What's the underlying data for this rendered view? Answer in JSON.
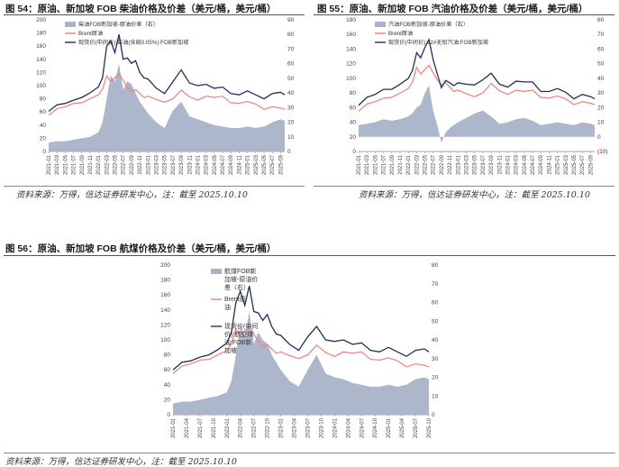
{
  "panels": [
    {
      "title": "图 54：原油、新加坡 FOB 柴油价格及价差（美元/桶，美元/桶）",
      "source": "资料来源：万得，信达证券研发中心，注：截至 2025.10.10"
    },
    {
      "title": "图 55：原油、新加坡 FOB 汽油价格及价差（美元/桶，美元/桶）",
      "source": "资料来源：万得，信达证券研发中心，注：截至 2025.10.10"
    },
    {
      "title": "图 56：原油、新加坡 FOB 航煤价格及价差（美元/桶，美元/桶）",
      "source": "资料来源：万得，信达证券研发中心，注：截至 2025.10.10"
    }
  ],
  "colors": {
    "spread_fill": "#a9b3c8",
    "brent": "#f08080",
    "product": "#1f2f5e",
    "grid": "#d9d9d9",
    "axis_text": "#444444",
    "negative_label": "#c00000"
  },
  "chart_data": [
    {
      "type": "area",
      "legend_position": "top-left",
      "left_axis": {
        "ylim": [
          0,
          200
        ],
        "ticks": [
          "0",
          "20",
          "40",
          "60",
          "80",
          "100",
          "120",
          "140",
          "160",
          "180",
          "200"
        ]
      },
      "right_axis": {
        "ylim": [
          0,
          90
        ],
        "ticks": [
          "0",
          "10",
          "20",
          "30",
          "40",
          "50",
          "60",
          "70",
          "80",
          "90"
        ]
      },
      "x_ticks": [
        "2021-01",
        "2021-03",
        "2021-05",
        "2021-07",
        "2021-09",
        "2021-11",
        "2022-01",
        "2022-03",
        "2022-05",
        "2022-07",
        "2022-09",
        "2022-11",
        "2023-01",
        "2023-03",
        "2023-05",
        "2023-07",
        "2023-09",
        "2023-11",
        "2024-01",
        "2024-03",
        "2024-05",
        "2024-07",
        "2024-09",
        "2024-11",
        "2025-01",
        "2025-03",
        "2025-05",
        "2025-07",
        "2025-09"
      ],
      "x": [
        "2021-01",
        "2021-03",
        "2021-05",
        "2021-07",
        "2021-09",
        "2021-11",
        "2022-01",
        "2022-02",
        "2022-03",
        "2022-04",
        "2022-05",
        "2022-06",
        "2022-07",
        "2022-08",
        "2022-09",
        "2022-10",
        "2022-11",
        "2022-12",
        "2023-01",
        "2023-03",
        "2023-05",
        "2023-07",
        "2023-09",
        "2023-11",
        "2024-01",
        "2024-03",
        "2024-05",
        "2024-07",
        "2024-09",
        "2024-11",
        "2025-01",
        "2025-03",
        "2025-05",
        "2025-07",
        "2025-09",
        "2025-10"
      ],
      "series": [
        {
          "name": "柴油FOB新加坡-原油价差（右）",
          "axis": "right",
          "kind": "area",
          "values": [
            6,
            7,
            7,
            8,
            9,
            10,
            13,
            20,
            36,
            52,
            48,
            60,
            42,
            48,
            46,
            40,
            34,
            30,
            26,
            20,
            16,
            28,
            34,
            24,
            22,
            20,
            18,
            17,
            16,
            16,
            17,
            16,
            17,
            20,
            22,
            21
          ]
        },
        {
          "name": "Brent原油",
          "axis": "left",
          "kind": "line",
          "values": [
            55,
            65,
            68,
            73,
            74,
            80,
            86,
            95,
            115,
            106,
            112,
            118,
            108,
            98,
            91,
            94,
            88,
            82,
            84,
            79,
            75,
            80,
            93,
            83,
            78,
            84,
            82,
            84,
            74,
            73,
            76,
            72,
            64,
            68,
            66,
            64
          ]
        },
        {
          "name": "现货价(中间价):柴油(含硫0.05%):FOB新加坡",
          "axis": "left",
          "kind": "line",
          "values": [
            61,
            71,
            73,
            78,
            82,
            89,
            98,
            112,
            160,
            168,
            150,
            178,
            140,
            142,
            134,
            138,
            120,
            112,
            110,
            96,
            88,
            106,
            124,
            104,
            100,
            102,
            96,
            98,
            88,
            86,
            92,
            86,
            80,
            88,
            90,
            86
          ]
        }
      ]
    },
    {
      "type": "area",
      "legend_position": "top-left",
      "left_axis": {
        "ylim": [
          0,
          180
        ],
        "ticks": [
          "0",
          "20",
          "40",
          "60",
          "80",
          "100",
          "120",
          "140",
          "160",
          "180"
        ]
      },
      "right_axis": {
        "ylim": [
          -10,
          80
        ],
        "ticks": [
          "(10)",
          "0",
          "10",
          "20",
          "30",
          "40",
          "50",
          "60",
          "70",
          "80"
        ]
      },
      "x_ticks": [
        "2021-01",
        "2021-03",
        "2021-05",
        "2021-07",
        "2021-09",
        "2021-11",
        "2022-01",
        "2022-03",
        "2022-05",
        "2022-07",
        "2022-09",
        "2022-11",
        "2023-01",
        "2023-03",
        "2023-05",
        "2023-07",
        "2023-09",
        "2023-11",
        "2024-01",
        "2024-03",
        "2024-05",
        "2024-07",
        "2024-09",
        "2024-11",
        "2025-01",
        "2025-03",
        "2025-05",
        "2025-07",
        "2025-09"
      ],
      "x": [
        "2021-01",
        "2021-03",
        "2021-05",
        "2021-07",
        "2021-09",
        "2021-11",
        "2022-01",
        "2022-02",
        "2022-03",
        "2022-04",
        "2022-05",
        "2022-06",
        "2022-07",
        "2022-08",
        "2022-09",
        "2022-10",
        "2022-11",
        "2022-12",
        "2023-01",
        "2023-03",
        "2023-05",
        "2023-07",
        "2023-09",
        "2023-11",
        "2024-01",
        "2024-03",
        "2024-05",
        "2024-07",
        "2024-09",
        "2024-11",
        "2025-01",
        "2025-03",
        "2025-05",
        "2025-07",
        "2025-09",
        "2025-10"
      ],
      "series": [
        {
          "name": "汽油FOB新加坡-原油价差（右）",
          "axis": "right",
          "kind": "area",
          "values": [
            8,
            9,
            10,
            12,
            11,
            12,
            14,
            16,
            20,
            22,
            30,
            35,
            18,
            8,
            -4,
            3,
            6,
            8,
            10,
            13,
            16,
            18,
            14,
            9,
            10,
            12,
            13,
            11,
            8,
            9,
            10,
            9,
            8,
            10,
            9,
            8
          ]
        },
        {
          "name": "Brent原油",
          "axis": "left",
          "kind": "line",
          "values": [
            55,
            65,
            68,
            73,
            74,
            80,
            86,
            95,
            115,
            106,
            112,
            118,
            108,
            98,
            91,
            94,
            88,
            82,
            84,
            79,
            75,
            80,
            93,
            83,
            78,
            84,
            82,
            84,
            74,
            73,
            76,
            72,
            64,
            68,
            66,
            64
          ]
        },
        {
          "name": "现货价(中间价):92#无铅汽油:FOB新加坡",
          "axis": "left",
          "kind": "line",
          "values": [
            63,
            74,
            78,
            85,
            85,
            92,
            100,
            111,
            135,
            128,
            142,
            153,
            126,
            106,
            87,
            97,
            94,
            90,
            94,
            92,
            91,
            98,
            107,
            92,
            88,
            96,
            95,
            95,
            82,
            82,
            86,
            81,
            72,
            78,
            75,
            72
          ]
        }
      ]
    },
    {
      "type": "area",
      "legend_position": "top-left",
      "left_axis": {
        "ylim": [
          0,
          200
        ],
        "ticks": [
          "0",
          "20",
          "40",
          "60",
          "80",
          "100",
          "120",
          "140",
          "160",
          "180",
          "200"
        ]
      },
      "right_axis": {
        "ylim": [
          0,
          80
        ],
        "ticks": [
          "0",
          "10",
          "20",
          "30",
          "40",
          "50",
          "60",
          "70",
          "80"
        ]
      },
      "x_ticks": [
        "2021-01",
        "2021-04",
        "2021-07",
        "2021-10",
        "2022-01",
        "2022-04",
        "2022-07",
        "2022-10",
        "2023-01",
        "2023-04",
        "2023-07",
        "2023-10",
        "2024-01",
        "2024-04",
        "2024-07",
        "2024-10",
        "2025-01",
        "2025-04",
        "2025-07",
        "2025-10"
      ],
      "x": [
        "2021-01",
        "2021-03",
        "2021-05",
        "2021-07",
        "2021-09",
        "2021-11",
        "2022-01",
        "2022-02",
        "2022-03",
        "2022-04",
        "2022-05",
        "2022-06",
        "2022-07",
        "2022-08",
        "2022-09",
        "2022-10",
        "2022-11",
        "2022-12",
        "2023-01",
        "2023-03",
        "2023-05",
        "2023-07",
        "2023-09",
        "2023-11",
        "2024-01",
        "2024-03",
        "2024-05",
        "2024-07",
        "2024-09",
        "2024-11",
        "2025-01",
        "2025-03",
        "2025-05",
        "2025-07",
        "2025-09",
        "2025-10"
      ],
      "series": [
        {
          "name": "航煤FOB新加坡-原油价差（右）",
          "axis": "right",
          "kind": "area",
          "values": [
            6,
            7,
            7,
            8,
            9,
            10,
            12,
            18,
            32,
            48,
            42,
            55,
            38,
            44,
            40,
            38,
            32,
            28,
            24,
            18,
            15,
            24,
            32,
            22,
            20,
            19,
            17,
            16,
            15,
            15,
            16,
            15,
            16,
            19,
            20,
            19
          ]
        },
        {
          "name": "Brent原油",
          "axis": "left",
          "kind": "line",
          "values": [
            55,
            65,
            68,
            73,
            74,
            80,
            86,
            95,
            115,
            106,
            112,
            118,
            108,
            98,
            91,
            94,
            88,
            82,
            84,
            79,
            75,
            80,
            93,
            83,
            78,
            84,
            82,
            84,
            74,
            73,
            76,
            72,
            64,
            68,
            66,
            64
          ]
        },
        {
          "name": "现货价(中间价):航空煤油:FOB新加坡",
          "axis": "left",
          "kind": "line",
          "values": [
            60,
            70,
            72,
            77,
            80,
            87,
            96,
            110,
            150,
            165,
            146,
            172,
            138,
            136,
            126,
            134,
            118,
            108,
            106,
            94,
            86,
            104,
            118,
            100,
            98,
            100,
            94,
            96,
            86,
            84,
            90,
            84,
            78,
            86,
            88,
            84
          ]
        }
      ]
    }
  ]
}
